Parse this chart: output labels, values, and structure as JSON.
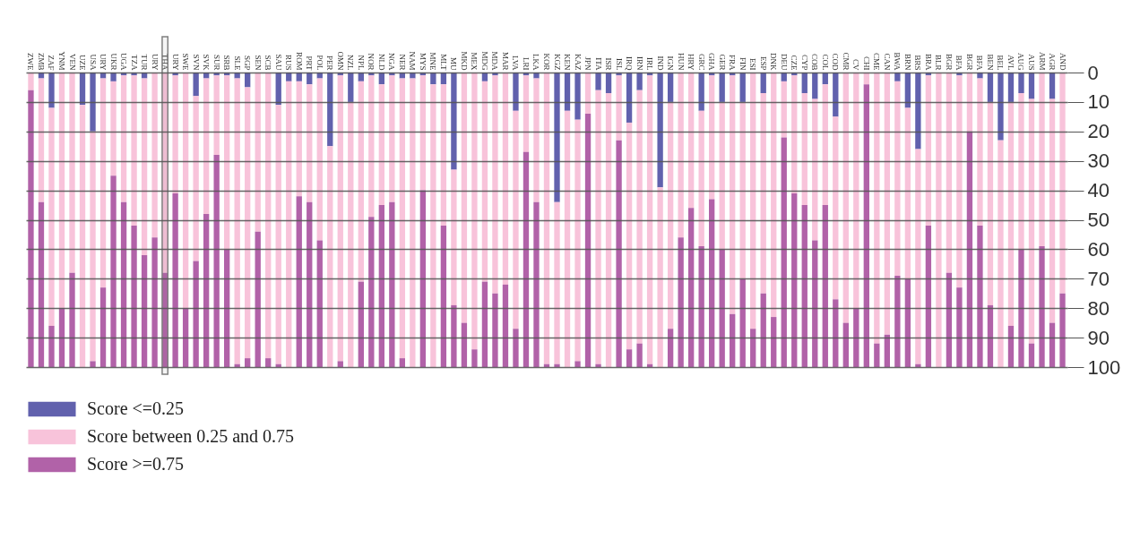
{
  "chart_data": {
    "type": "bar",
    "stacked": true,
    "categories": [
      "ZWE",
      "ZMB",
      "ZAF",
      "YNM",
      "VEN",
      "UZE",
      "USA",
      "URY",
      "UKR",
      "UGA",
      "TZA",
      "TUR",
      "URY",
      "THA",
      "URY",
      "SWE",
      "SVN",
      "SVK",
      "SUR",
      "SRB",
      "SLE",
      "SGP",
      "SEN",
      "SCB",
      "SAU",
      "RUS",
      "ROM",
      "PRT",
      "POL",
      "PER",
      "OMN",
      "NZL",
      "NPL",
      "NOR",
      "NLD",
      "NGA",
      "NER",
      "NAM",
      "MYS",
      "MNE",
      "MLT",
      "MU",
      "MKD",
      "MEX",
      "MDG",
      "MDA",
      "MAR",
      "LVA",
      "LRI",
      "LKA",
      "KOR",
      "KGZ",
      "KEN",
      "KAZ",
      "JPN",
      "ITA",
      "ISR",
      "ISL",
      "IRQ",
      "IRN",
      "IRL",
      "IND",
      "IGN",
      "HUN",
      "HRY",
      "GRC",
      "GHA",
      "GER",
      "FRA",
      "FIN",
      "ESI",
      "ESP",
      "DNK",
      "DEU",
      "CZE",
      "CYP",
      "COB",
      "COL",
      "COD",
      "CMR",
      "CV",
      "CHI",
      "CME",
      "CAN",
      "BWA",
      "BRN",
      "BRS",
      "BRA",
      "BLR",
      "BGR",
      "BFA",
      "BGR",
      "BFA",
      "BEN",
      "BEL",
      "AVL",
      "AUG",
      "AUS",
      "ARM",
      "AGR",
      "AND"
    ],
    "series": [
      {
        "name": "Score <=0.25",
        "color": "#6161ad",
        "values": [
          0,
          2,
          12,
          0,
          0,
          11,
          20,
          2,
          3,
          1,
          1,
          2,
          0,
          0,
          1,
          0,
          8,
          2,
          1,
          1,
          2,
          5,
          0,
          0,
          11,
          3,
          3,
          4,
          2,
          25,
          1,
          10,
          3,
          1,
          4,
          1,
          2,
          2,
          1,
          4,
          4,
          33,
          0,
          0,
          3,
          1,
          0,
          13,
          1,
          2,
          0,
          44,
          13,
          16,
          0,
          6,
          7,
          1,
          17,
          6,
          1,
          39,
          10,
          0,
          0,
          13,
          1,
          10,
          1,
          10,
          0,
          7,
          0,
          3,
          1,
          7,
          9,
          4,
          15,
          0,
          0,
          0,
          0,
          0,
          3,
          12,
          26,
          1,
          0,
          0,
          1,
          0,
          2,
          10,
          23,
          10,
          7,
          9,
          0,
          9,
          0
        ]
      },
      {
        "name": "Score between 0.25 and 0.75",
        "color": "#f8c3da",
        "values": [
          6,
          42,
          74,
          80,
          68,
          89,
          78,
          71,
          32,
          43,
          51,
          60,
          56,
          68,
          40,
          80,
          56,
          46,
          27,
          59,
          97,
          92,
          54,
          97,
          88,
          97,
          39,
          40,
          55,
          75,
          97,
          90,
          68,
          48,
          41,
          43,
          95,
          98,
          39,
          96,
          48,
          46,
          85,
          94,
          68,
          74,
          72,
          74,
          26,
          42,
          99,
          55,
          87,
          82,
          14,
          93,
          93,
          22,
          77,
          86,
          98,
          61,
          77,
          56,
          46,
          46,
          42,
          50,
          81,
          60,
          87,
          68,
          83,
          19,
          40,
          38,
          48,
          41,
          62,
          85,
          80,
          4,
          92,
          89,
          66,
          58,
          73,
          51,
          100,
          68,
          72,
          20,
          50,
          69,
          77,
          76,
          53,
          83,
          59,
          76,
          75
        ]
      },
      {
        "name": "Score >=0.75",
        "color": "#b162a8",
        "values": [
          94,
          56,
          14,
          20,
          32,
          0,
          2,
          27,
          65,
          56,
          48,
          38,
          44,
          32,
          59,
          20,
          36,
          52,
          72,
          40,
          1,
          3,
          46,
          3,
          1,
          0,
          58,
          56,
          43,
          0,
          2,
          0,
          29,
          51,
          55,
          56,
          3,
          0,
          60,
          0,
          48,
          21,
          15,
          6,
          29,
          25,
          28,
          13,
          73,
          56,
          1,
          1,
          0,
          2,
          86,
          1,
          0,
          77,
          6,
          8,
          1,
          0,
          13,
          44,
          54,
          41,
          57,
          40,
          18,
          30,
          13,
          25,
          17,
          78,
          59,
          55,
          43,
          55,
          23,
          15,
          20,
          96,
          8,
          11,
          31,
          30,
          1,
          48,
          0,
          32,
          27,
          80,
          48,
          21,
          0,
          14,
          40,
          8,
          41,
          15,
          25
        ]
      }
    ],
    "ylim": [
      100,
      0
    ],
    "yticks": [
      0,
      10,
      20,
      30,
      40,
      50,
      60,
      70,
      80,
      90,
      100
    ],
    "grid": "y",
    "legend": "bottom",
    "bands": [
      {
        "axis": "x",
        "from": "THA",
        "to": "THA",
        "color": "#808080"
      }
    ]
  }
}
